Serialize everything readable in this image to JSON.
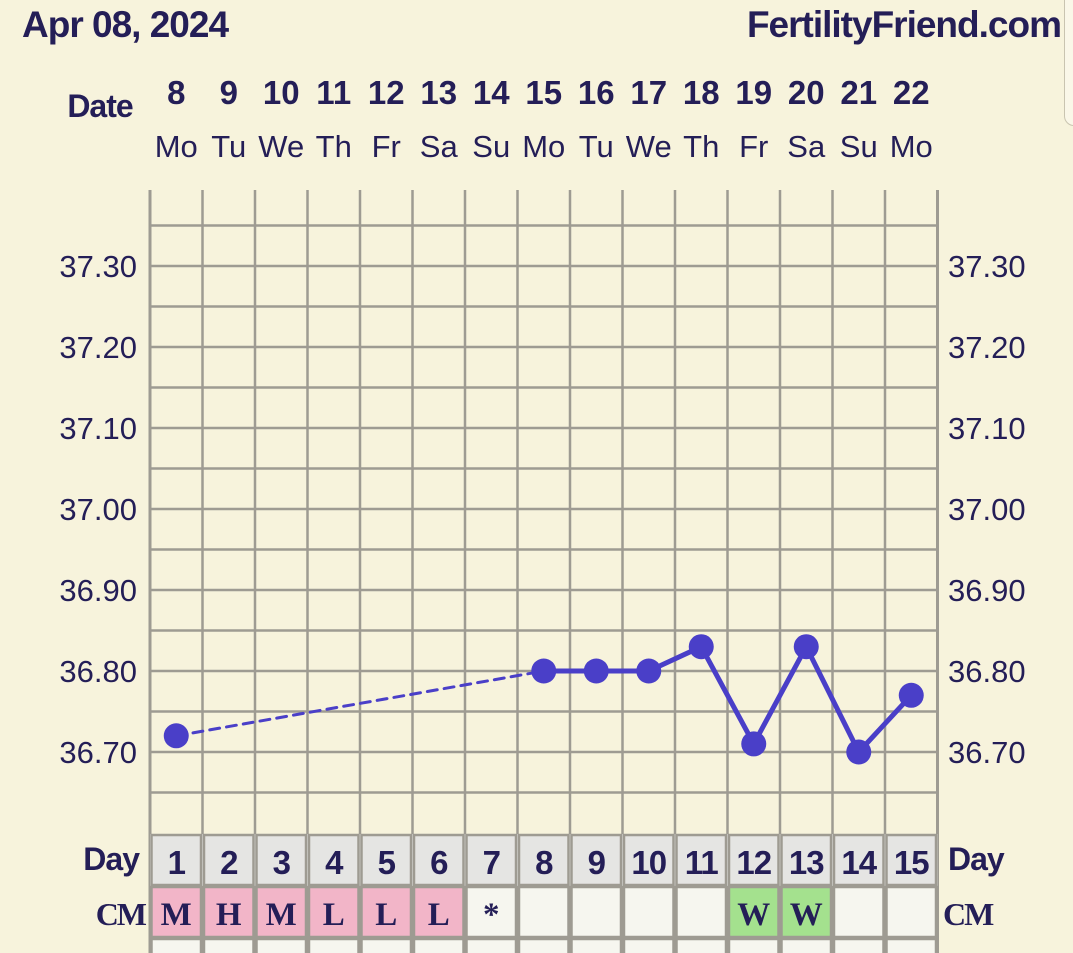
{
  "header": {
    "date_title": "Apr 08, 2024",
    "site": "FertilityFriend.com"
  },
  "labels": {
    "date": "Date",
    "day": "Day",
    "cm": "CM"
  },
  "colors": {
    "background": "#f7f3dc",
    "text": "#241e57",
    "line": "#4a3fc8",
    "grid": "#9e9b92",
    "cm_pink": "#f2b5c8",
    "cm_green": "#a4e18e",
    "day_row": "#e5e5e3",
    "cm_empty": "#f6f6ef"
  },
  "chart_data": {
    "type": "line",
    "title": "",
    "xlabel": "Day",
    "ylabel": "",
    "dates": [
      "8",
      "9",
      "10",
      "11",
      "12",
      "13",
      "14",
      "15",
      "16",
      "17",
      "18",
      "19",
      "20",
      "21",
      "22"
    ],
    "weekdays": [
      "Mo",
      "Tu",
      "We",
      "Th",
      "Fr",
      "Sa",
      "Su",
      "Mo",
      "Tu",
      "We",
      "Th",
      "Fr",
      "Sa",
      "Su",
      "Mo"
    ],
    "cycle_days": [
      "1",
      "2",
      "3",
      "4",
      "5",
      "6",
      "7",
      "8",
      "9",
      "10",
      "11",
      "12",
      "13",
      "14",
      "15"
    ],
    "temperatures": [
      36.72,
      null,
      null,
      null,
      null,
      null,
      null,
      36.8,
      36.8,
      36.8,
      36.83,
      36.71,
      36.83,
      36.7,
      36.77
    ],
    "missing_segment_style": "dashed",
    "yticks": [
      "37.30",
      "37.20",
      "37.10",
      "37.00",
      "36.90",
      "36.80",
      "36.70"
    ],
    "ylim": [
      36.6,
      37.4
    ],
    "grid": true,
    "cervical_mucus": [
      "M",
      "H",
      "M",
      "L",
      "L",
      "L",
      "*",
      "",
      "",
      "",
      "",
      "W",
      "W",
      "",
      ""
    ],
    "cervical_mucus_color": [
      "pink",
      "pink",
      "pink",
      "pink",
      "pink",
      "pink",
      "",
      "",
      "",
      "",
      "",
      "green",
      "green",
      "",
      ""
    ]
  }
}
